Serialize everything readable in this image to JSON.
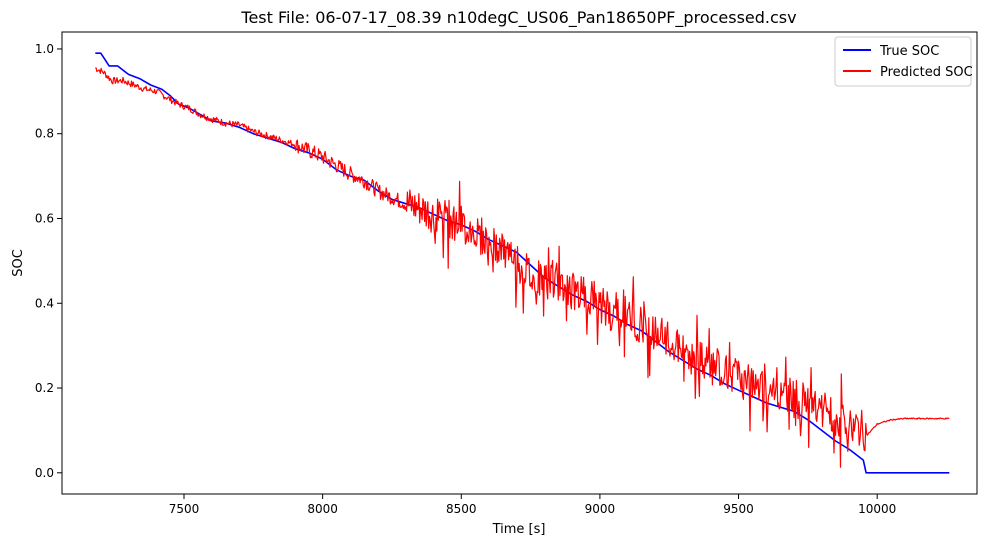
{
  "chart_data": {
    "type": "line",
    "title": "Test File: 06-07-17_08.39 n10degC_US06_Pan18650PF_processed.csv",
    "xlabel": "Time [s]",
    "ylabel": "SOC",
    "xlim": [
      7060,
      10360
    ],
    "ylim": [
      -0.05,
      1.04
    ],
    "xticks": [
      7500,
      8000,
      8500,
      9000,
      9500,
      10000
    ],
    "yticks": [
      0.0,
      0.2,
      0.4,
      0.6,
      0.8,
      1.0
    ],
    "xtick_labels": [
      "7500",
      "8000",
      "8500",
      "9000",
      "9500",
      "10000"
    ],
    "ytick_labels": [
      "0.0",
      "0.2",
      "0.4",
      "0.6",
      "0.8",
      "1.0"
    ],
    "grid": false,
    "legend_position": "top-right",
    "series": [
      {
        "name": "True SOC",
        "color": "#0000ff",
        "x": [
          7180,
          7200,
          7215,
          7230,
          7260,
          7300,
          7340,
          7380,
          7420,
          7450,
          7480,
          7520,
          7560,
          7600,
          7650,
          7700,
          7750,
          7800,
          7850,
          7900,
          7950,
          8000,
          8050,
          8100,
          8150,
          8200,
          8250,
          8300,
          8350,
          8400,
          8450,
          8500,
          8550,
          8600,
          8650,
          8700,
          8750,
          8800,
          8850,
          8900,
          8950,
          9000,
          9050,
          9100,
          9150,
          9200,
          9250,
          9300,
          9350,
          9400,
          9450,
          9500,
          9550,
          9600,
          9650,
          9700,
          9750,
          9800,
          9850,
          9900,
          9950,
          9960,
          10000,
          10100,
          10200,
          10260
        ],
        "values": [
          0.99,
          0.99,
          0.975,
          0.96,
          0.96,
          0.94,
          0.93,
          0.915,
          0.905,
          0.89,
          0.87,
          0.86,
          0.845,
          0.83,
          0.825,
          0.815,
          0.8,
          0.79,
          0.78,
          0.765,
          0.755,
          0.74,
          0.715,
          0.7,
          0.69,
          0.665,
          0.645,
          0.635,
          0.625,
          0.61,
          0.595,
          0.585,
          0.57,
          0.55,
          0.535,
          0.52,
          0.49,
          0.46,
          0.44,
          0.42,
          0.405,
          0.385,
          0.37,
          0.35,
          0.335,
          0.31,
          0.285,
          0.265,
          0.245,
          0.23,
          0.21,
          0.195,
          0.18,
          0.165,
          0.155,
          0.145,
          0.125,
          0.1,
          0.075,
          0.055,
          0.03,
          0.0,
          0.0,
          0.0,
          0.0,
          0.0
        ]
      },
      {
        "name": "Predicted SOC",
        "color": "#ff0000",
        "x": [
          7180,
          7210,
          7240,
          7280,
          7320,
          7360,
          7400,
          7440,
          7480,
          7520,
          7560,
          7600,
          7650,
          7700,
          7750,
          7800,
          7850,
          7900,
          7950,
          8000,
          8050,
          8100,
          8150,
          8200,
          8250,
          8300,
          8350,
          8400,
          8450,
          8500,
          8550,
          8600,
          8650,
          8700,
          8750,
          8800,
          8850,
          8900,
          8950,
          9000,
          9050,
          9100,
          9150,
          9200,
          9250,
          9300,
          9350,
          9400,
          9450,
          9500,
          9550,
          9600,
          9650,
          9700,
          9750,
          9800,
          9850,
          9900,
          9950,
          9965,
          10000,
          10050,
          10100,
          10150,
          10200,
          10260
        ],
        "values": [
          0.955,
          0.945,
          0.925,
          0.925,
          0.915,
          0.905,
          0.9,
          0.885,
          0.87,
          0.86,
          0.845,
          0.835,
          0.825,
          0.82,
          0.805,
          0.795,
          0.785,
          0.775,
          0.76,
          0.745,
          0.725,
          0.705,
          0.69,
          0.665,
          0.65,
          0.635,
          0.625,
          0.61,
          0.6,
          0.585,
          0.57,
          0.545,
          0.52,
          0.495,
          0.465,
          0.455,
          0.45,
          0.43,
          0.42,
          0.4,
          0.385,
          0.37,
          0.35,
          0.33,
          0.31,
          0.285,
          0.27,
          0.255,
          0.245,
          0.225,
          0.205,
          0.195,
          0.185,
          0.175,
          0.165,
          0.15,
          0.13,
          0.12,
          0.1,
          0.09,
          0.115,
          0.125,
          0.128,
          0.128,
          0.128,
          0.128
        ]
      }
    ]
  }
}
